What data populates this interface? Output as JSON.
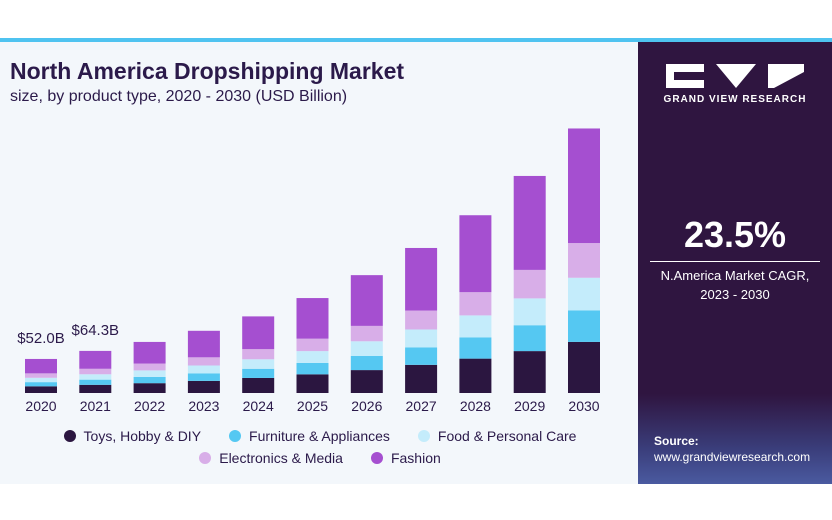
{
  "header": {
    "title": "North America Dropshipping Market",
    "subtitle": "size, by product type, 2020 - 2030 (USD Billion)"
  },
  "sidebar": {
    "brand": "GRAND VIEW RESEARCH",
    "cagr_value": "23.5%",
    "cagr_label_line1": "N.America Market CAGR,",
    "cagr_label_line2": "2023 - 2030",
    "source_label": "Source:",
    "source_url": "www.grandviewresearch.com"
  },
  "chart_data": {
    "type": "bar",
    "stacked": true,
    "categories": [
      "2020",
      "2021",
      "2022",
      "2023",
      "2024",
      "2025",
      "2026",
      "2027",
      "2028",
      "2029",
      "2030"
    ],
    "series": [
      {
        "name": "Toys, Hobby & DIY",
        "color": "#2b1640",
        "values": [
          10.2,
          12.5,
          15.0,
          18.5,
          23.0,
          28.5,
          35.0,
          43.0,
          52.5,
          64.0,
          78.0
        ]
      },
      {
        "name": "Furniture & Appliances",
        "color": "#55c8f2",
        "values": [
          6.4,
          7.9,
          9.5,
          11.5,
          14.0,
          17.5,
          21.5,
          26.5,
          32.5,
          39.5,
          48.0
        ]
      },
      {
        "name": "Food & Personal Care",
        "color": "#c4ecfb",
        "values": [
          6.6,
          8.2,
          10.0,
          12.0,
          14.5,
          18.0,
          22.5,
          27.5,
          33.5,
          41.0,
          50.0
        ]
      },
      {
        "name": "Electronics & Media",
        "color": "#d8aee8",
        "values": [
          6.8,
          8.4,
          10.5,
          12.5,
          15.5,
          19.0,
          23.5,
          29.0,
          35.5,
          43.5,
          53.0
        ]
      },
      {
        "name": "Fashion",
        "color": "#a54fd0",
        "values": [
          22.0,
          27.3,
          33.0,
          40.5,
          50.0,
          62.0,
          77.5,
          95.5,
          117.5,
          143.5,
          175.0
        ]
      }
    ],
    "annotations": [
      {
        "category": "2020",
        "text": "$52.0B"
      },
      {
        "category": "2021",
        "text": "$64.3B"
      }
    ],
    "ylim": [
      0,
      420
    ],
    "grid": false,
    "legend_position": "bottom"
  },
  "colors": {
    "accent": "#4fc3f0",
    "panel": "#2f1540",
    "text": "#2b1a4a"
  }
}
